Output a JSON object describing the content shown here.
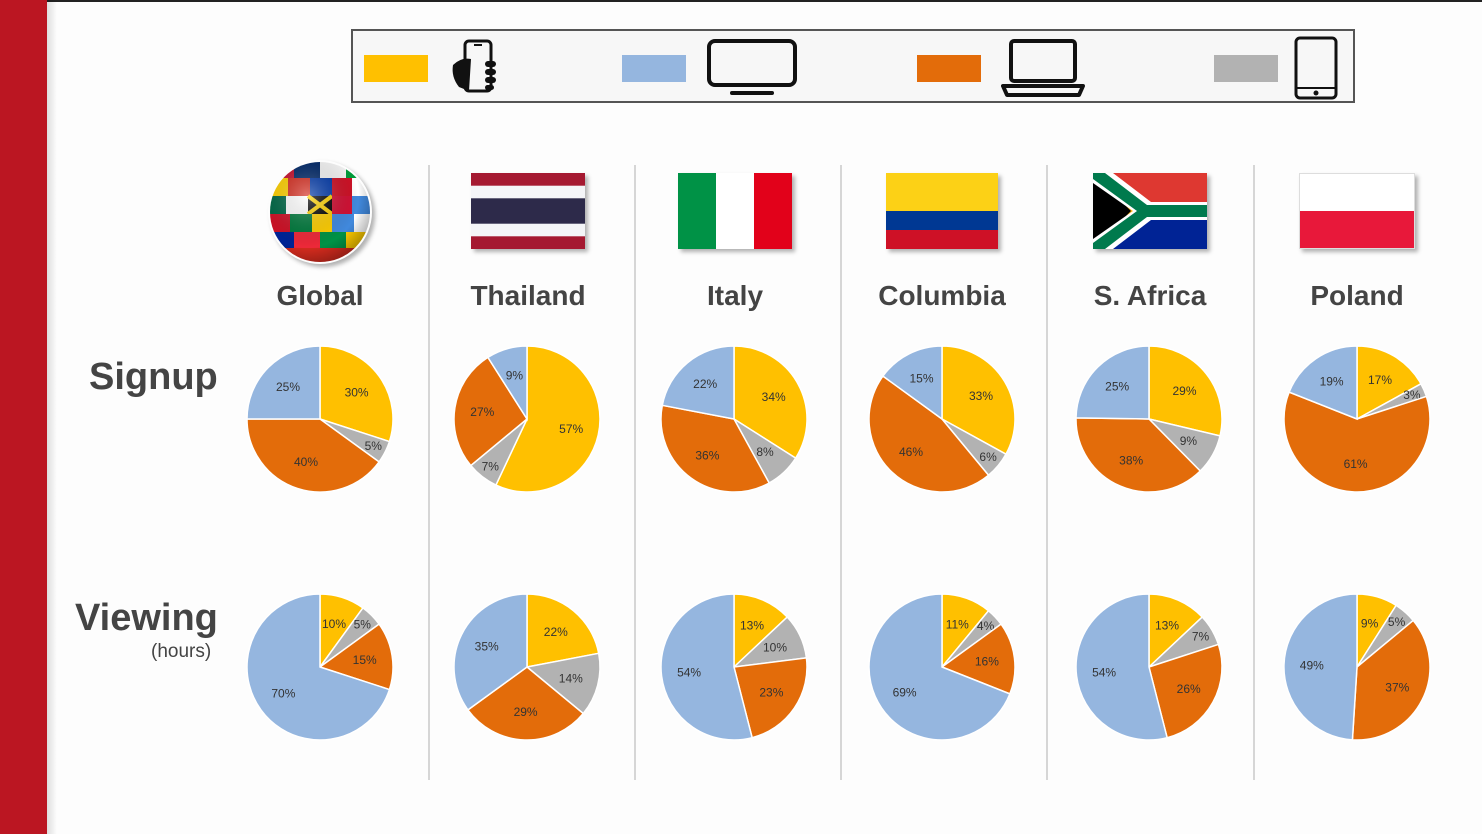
{
  "colors": {
    "mobile": "#ffc000",
    "tv": "#95b6df",
    "computer": "#e36c0a",
    "tablet": "#b2b2b2",
    "accent_red": "#bb1622"
  },
  "legend": [
    {
      "icon": "smartphone-in-hand-icon",
      "color_key": "mobile"
    },
    {
      "icon": "tv-icon",
      "color_key": "tv"
    },
    {
      "icon": "laptop-icon",
      "color_key": "computer"
    },
    {
      "icon": "tablet-icon",
      "color_key": "tablet"
    }
  ],
  "rows": {
    "signup_label": "Signup",
    "viewing_label": "Viewing",
    "viewing_sublabel": "(hours)"
  },
  "countries": [
    {
      "name": "Global",
      "flag": "world-flags-globe-icon"
    },
    {
      "name": "Thailand",
      "flag": "thailand-flag"
    },
    {
      "name": "Italy",
      "flag": "italy-flag"
    },
    {
      "name": "Columbia",
      "flag": "colombia-flag"
    },
    {
      "name": "S. Africa",
      "flag": "south-africa-flag"
    },
    {
      "name": "Poland",
      "flag": "poland-flag"
    }
  ],
  "chart_data": [
    {
      "type": "pie",
      "row": "Signup",
      "country": "Global",
      "slices": [
        {
          "color_key": "mobile",
          "value": 30,
          "label": "30%"
        },
        {
          "color_key": "tablet",
          "value": 5,
          "label": "5%"
        },
        {
          "color_key": "computer",
          "value": 40,
          "label": "40%"
        },
        {
          "color_key": "tv",
          "value": 25,
          "label": "25%"
        }
      ]
    },
    {
      "type": "pie",
      "row": "Signup",
      "country": "Thailand",
      "slices": [
        {
          "color_key": "mobile",
          "value": 57,
          "label": "57%"
        },
        {
          "color_key": "tablet",
          "value": 7,
          "label": "7%"
        },
        {
          "color_key": "computer",
          "value": 27,
          "label": "27%"
        },
        {
          "color_key": "tv",
          "value": 9,
          "label": "9%"
        }
      ]
    },
    {
      "type": "pie",
      "row": "Signup",
      "country": "Italy",
      "slices": [
        {
          "color_key": "mobile",
          "value": 34,
          "label": "34%"
        },
        {
          "color_key": "tablet",
          "value": 8,
          "label": "8%"
        },
        {
          "color_key": "computer",
          "value": 36,
          "label": "36%"
        },
        {
          "color_key": "tv",
          "value": 22,
          "label": "22%"
        }
      ]
    },
    {
      "type": "pie",
      "row": "Signup",
      "country": "Columbia",
      "slices": [
        {
          "color_key": "mobile",
          "value": 33,
          "label": "33%"
        },
        {
          "color_key": "tablet",
          "value": 6,
          "label": "6%"
        },
        {
          "color_key": "computer",
          "value": 46,
          "label": "46%"
        },
        {
          "color_key": "tv",
          "value": 15,
          "label": "15%"
        }
      ]
    },
    {
      "type": "pie",
      "row": "Signup",
      "country": "S. Africa",
      "slices": [
        {
          "color_key": "mobile",
          "value": 29,
          "label": "29%"
        },
        {
          "color_key": "tablet",
          "value": 9,
          "label": "9%"
        },
        {
          "color_key": "computer",
          "value": 38,
          "label": "38%"
        },
        {
          "color_key": "tv",
          "value": 25,
          "label": "25%"
        }
      ]
    },
    {
      "type": "pie",
      "row": "Signup",
      "country": "Poland",
      "slices": [
        {
          "color_key": "mobile",
          "value": 17,
          "label": "17%"
        },
        {
          "color_key": "tablet",
          "value": 3,
          "label": "3%"
        },
        {
          "color_key": "computer",
          "value": 61,
          "label": "61%"
        },
        {
          "color_key": "tv",
          "value": 19,
          "label": "19%"
        }
      ]
    },
    {
      "type": "pie",
      "row": "Viewing",
      "country": "Global",
      "slices": [
        {
          "color_key": "mobile",
          "value": 10,
          "label": "10%"
        },
        {
          "color_key": "tablet",
          "value": 5,
          "label": "5%"
        },
        {
          "color_key": "computer",
          "value": 15,
          "label": "15%"
        },
        {
          "color_key": "tv",
          "value": 70,
          "label": "70%"
        }
      ]
    },
    {
      "type": "pie",
      "row": "Viewing",
      "country": "Thailand",
      "slices": [
        {
          "color_key": "mobile",
          "value": 22,
          "label": "22%"
        },
        {
          "color_key": "tablet",
          "value": 14,
          "label": "14%"
        },
        {
          "color_key": "computer",
          "value": 29,
          "label": "29%"
        },
        {
          "color_key": "tv",
          "value": 35,
          "label": "35%"
        }
      ]
    },
    {
      "type": "pie",
      "row": "Viewing",
      "country": "Italy",
      "slices": [
        {
          "color_key": "mobile",
          "value": 13,
          "label": "13%"
        },
        {
          "color_key": "tablet",
          "value": 10,
          "label": "10%"
        },
        {
          "color_key": "computer",
          "value": 23,
          "label": "23%"
        },
        {
          "color_key": "tv",
          "value": 54,
          "label": "54%"
        }
      ]
    },
    {
      "type": "pie",
      "row": "Viewing",
      "country": "Columbia",
      "slices": [
        {
          "color_key": "mobile",
          "value": 11,
          "label": "11%"
        },
        {
          "color_key": "tablet",
          "value": 4,
          "label": "4%"
        },
        {
          "color_key": "computer",
          "value": 16,
          "label": "16%"
        },
        {
          "color_key": "tv",
          "value": 69,
          "label": "69%"
        }
      ]
    },
    {
      "type": "pie",
      "row": "Viewing",
      "country": "S. Africa",
      "slices": [
        {
          "color_key": "mobile",
          "value": 13,
          "label": "13%"
        },
        {
          "color_key": "tablet",
          "value": 7,
          "label": "7%"
        },
        {
          "color_key": "computer",
          "value": 26,
          "label": "26%"
        },
        {
          "color_key": "tv",
          "value": 54,
          "label": "54%"
        }
      ]
    },
    {
      "type": "pie",
      "row": "Viewing",
      "country": "Poland",
      "slices": [
        {
          "color_key": "mobile",
          "value": 9,
          "label": "9%"
        },
        {
          "color_key": "tablet",
          "value": 5,
          "label": "5%"
        },
        {
          "color_key": "computer",
          "value": 37,
          "label": "37%"
        },
        {
          "color_key": "tv",
          "value": 49,
          "label": "49%"
        }
      ]
    }
  ]
}
